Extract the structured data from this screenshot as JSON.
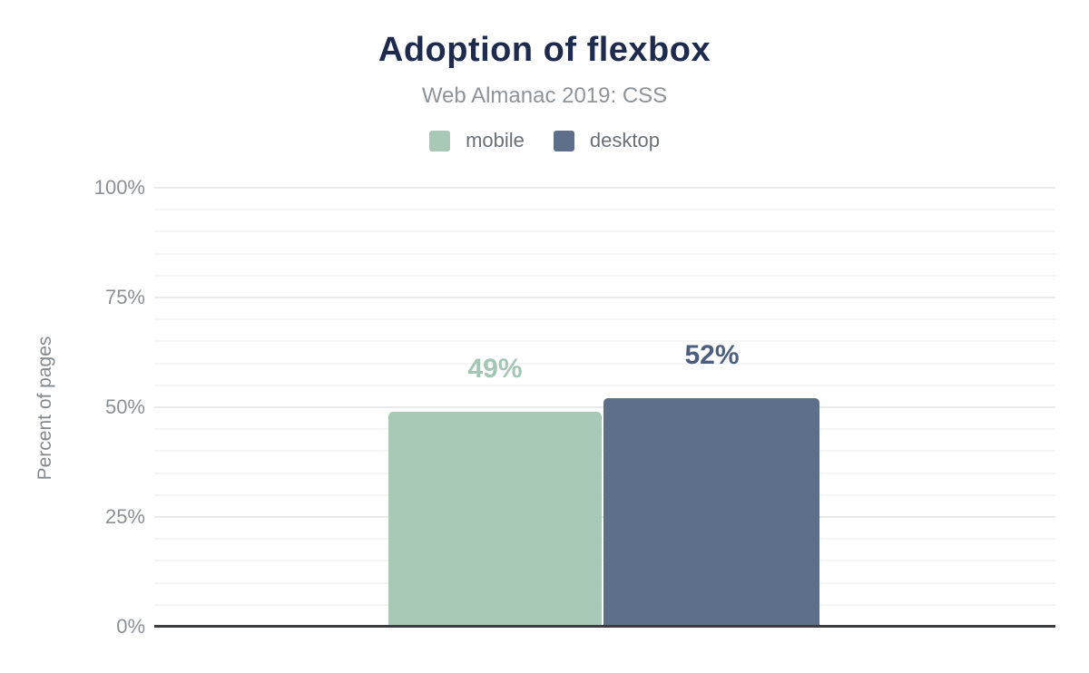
{
  "header": {
    "title": "Adoption of flexbox",
    "subtitle": "Web Almanac 2019: CSS"
  },
  "legend": [
    {
      "label": "mobile",
      "color": "#a7c9b6"
    },
    {
      "label": "desktop",
      "color": "#5d6f89"
    }
  ],
  "colors": {
    "title": "#1e2b4d",
    "subtitle": "#8f9499",
    "tick_text": "#8b9095",
    "axis_line": "#3b3d40",
    "minor_grid": "#f4f5f5",
    "major_grid": "#e9eaeb",
    "mobile_bar": "#a7c9b6",
    "desktop_bar": "#5d6f89",
    "mobile_value_label": "#a3c7b4",
    "desktop_value_label": "#4e5f7e"
  },
  "chart_data": {
    "type": "bar",
    "title": "Adoption of flexbox",
    "subtitle": "Web Almanac 2019: CSS",
    "categories": [
      "mobile",
      "desktop"
    ],
    "series": [
      {
        "name": "mobile",
        "value": 49,
        "label": "49%",
        "color": "#a7c9b6",
        "label_color": "#a3c7b4"
      },
      {
        "name": "desktop",
        "value": 52,
        "label": "52%",
        "color": "#5d6f89",
        "label_color": "#4e5f7e"
      }
    ],
    "ylabel": "Percent of pages",
    "xlabel": "",
    "ylim": [
      0,
      100
    ],
    "yticks": [
      0,
      25,
      50,
      75,
      100
    ],
    "ytick_labels": [
      "0%",
      "25%",
      "50%",
      "75%",
      "100%"
    ],
    "grid": {
      "minor_step": 5,
      "major_step": 25,
      "on": true
    },
    "legend_position": "top"
  }
}
